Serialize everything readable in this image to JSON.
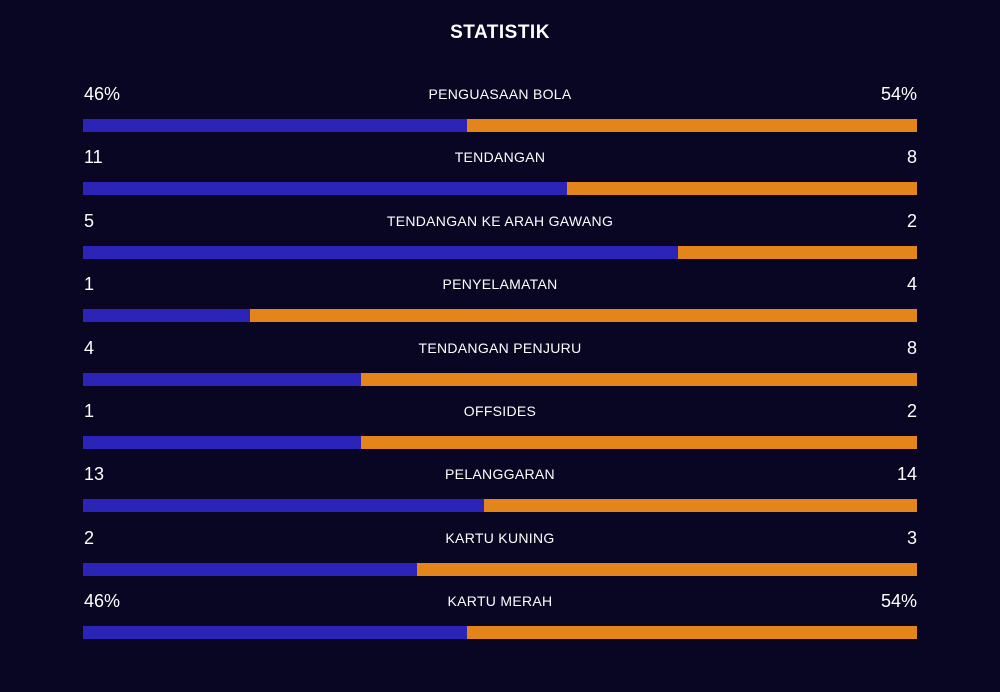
{
  "title": "STATISTIK",
  "colors": {
    "background": "#080623",
    "home": "#2c24b6",
    "away": "#e4851c"
  },
  "stats": [
    {
      "label": "PENGUASAAN BOLA",
      "home": "46%",
      "away": "54%",
      "home_share": 0.46
    },
    {
      "label": "TENDANGAN",
      "home": "11",
      "away": "8",
      "home_share": 0.58
    },
    {
      "label": "TENDANGAN KE ARAH GAWANG",
      "home": "5",
      "away": "2",
      "home_share": 0.714
    },
    {
      "label": "PENYELAMATAN",
      "home": "1",
      "away": "4",
      "home_share": 0.2
    },
    {
      "label": "TENDANGAN PENJURU",
      "home": "4",
      "away": "8",
      "home_share": 0.333
    },
    {
      "label": "OFFSIDES",
      "home": "1",
      "away": "2",
      "home_share": 0.333
    },
    {
      "label": "PELANGGARAN",
      "home": "13",
      "away": "14",
      "home_share": 0.481
    },
    {
      "label": "KARTU KUNING",
      "home": "2",
      "away": "3",
      "home_share": 0.4
    },
    {
      "label": "KARTU MERAH",
      "home": "46%",
      "away": "54%",
      "home_share": 0.46
    }
  ]
}
